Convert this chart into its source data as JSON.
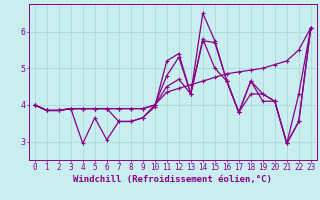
{
  "xlabel": "Windchill (Refroidissement éolien,°C)",
  "background_color": "#c8eef0",
  "line_color": "#880088",
  "grid_color": "#b0d8dc",
  "series": [
    [
      4.0,
      3.85,
      3.85,
      3.9,
      3.9,
      3.9,
      3.9,
      3.9,
      3.9,
      3.9,
      4.0,
      4.35,
      4.45,
      4.55,
      4.65,
      4.75,
      4.85,
      4.9,
      4.95,
      5.0,
      5.1,
      5.2,
      5.5,
      6.1
    ],
    [
      4.0,
      3.85,
      3.85,
      3.9,
      3.9,
      3.9,
      3.9,
      3.9,
      3.9,
      3.9,
      4.0,
      4.5,
      4.7,
      4.3,
      5.75,
      5.7,
      4.65,
      3.8,
      4.3,
      4.3,
      4.1,
      2.95,
      4.3,
      6.1
    ],
    [
      4.0,
      3.85,
      3.85,
      3.9,
      2.95,
      3.65,
      3.05,
      3.55,
      3.55,
      3.65,
      3.95,
      5.2,
      5.4,
      4.3,
      6.5,
      5.75,
      4.65,
      3.8,
      4.65,
      4.3,
      4.1,
      2.95,
      3.55,
      6.1
    ],
    [
      4.0,
      3.85,
      3.85,
      3.9,
      3.9,
      3.9,
      3.9,
      3.55,
      3.55,
      3.65,
      4.0,
      4.8,
      5.3,
      4.3,
      5.8,
      5.0,
      4.65,
      3.8,
      4.65,
      4.1,
      4.1,
      2.95,
      3.55,
      6.1
    ]
  ],
  "x_data": [
    0,
    1,
    2,
    3,
    4,
    5,
    6,
    7,
    8,
    9,
    10,
    11,
    12,
    13,
    14,
    15,
    16,
    17,
    18,
    19,
    20,
    21,
    22,
    23
  ],
  "xlim": [
    -0.5,
    23.5
  ],
  "ylim": [
    2.5,
    6.75
  ],
  "xtick_labels": [
    "0",
    "1",
    "2",
    "3",
    "4",
    "5",
    "6",
    "7",
    "8",
    "9",
    "10",
    "11",
    "12",
    "13",
    "14",
    "15",
    "16",
    "17",
    "18",
    "19",
    "20",
    "21",
    "22",
    "23"
  ],
  "ytick_values": [
    3,
    4,
    5,
    6
  ],
  "marker": "+",
  "markersize": 3.5,
  "linewidth": 0.9,
  "xlabel_fontsize": 6.5,
  "tick_fontsize": 5.5,
  "fig_width": 3.2,
  "fig_height": 2.0,
  "dpi": 100
}
